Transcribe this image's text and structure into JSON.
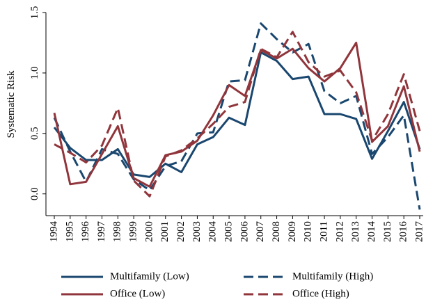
{
  "chart_data": {
    "type": "line",
    "y_label": "Systematic Risk",
    "categories": [
      "1994",
      "1995",
      "1996",
      "1997",
      "1998",
      "1999",
      "2000",
      "2001",
      "2002",
      "2003",
      "2004",
      "2005",
      "2006",
      "2007",
      "2008",
      "2009",
      "2010",
      "2011",
      "2012",
      "2013",
      "2014",
      "2015",
      "2016",
      "2017"
    ],
    "series": [
      {
        "name": "Multifamily (Low)",
        "color": "#1a476f",
        "linestyle": "solid",
        "values": [
          0.55,
          0.38,
          0.28,
          0.28,
          0.37,
          0.16,
          0.14,
          0.25,
          0.18,
          0.41,
          0.47,
          0.63,
          0.57,
          1.17,
          1.1,
          0.95,
          0.97,
          0.66,
          0.66,
          0.62,
          0.29,
          0.52,
          0.76,
          0.37
        ]
      },
      {
        "name": "Multifamily (High)",
        "color": "#1a476f",
        "linestyle": "dashed",
        "values": [
          0.63,
          0.35,
          0.1,
          0.37,
          0.33,
          0.12,
          0.03,
          0.23,
          0.27,
          0.5,
          0.51,
          0.93,
          0.94,
          1.41,
          1.28,
          1.17,
          1.24,
          0.85,
          0.75,
          0.81,
          0.33,
          0.47,
          0.65,
          -0.13
        ]
      },
      {
        "name": "Office (Low)",
        "color": "#90353b",
        "linestyle": "solid",
        "values": [
          0.67,
          0.08,
          0.1,
          0.33,
          0.56,
          0.13,
          0.06,
          0.32,
          0.35,
          0.44,
          0.65,
          0.9,
          0.81,
          1.19,
          1.12,
          1.2,
          1.04,
          0.93,
          1.04,
          1.25,
          0.43,
          0.56,
          0.89,
          0.35
        ]
      },
      {
        "name": "Office (High)",
        "color": "#90353b",
        "linestyle": "dashed",
        "values": [
          0.41,
          0.34,
          0.26,
          0.4,
          0.71,
          0.11,
          -0.02,
          0.31,
          0.36,
          0.46,
          0.58,
          0.72,
          0.76,
          1.2,
          1.13,
          1.34,
          1.09,
          0.97,
          1.02,
          0.84,
          0.44,
          0.66,
          0.99,
          0.52
        ]
      }
    ],
    "ylim": [
      -0.18,
      1.5
    ],
    "yticks": [
      {
        "value": 0,
        "label": "0.0"
      },
      0.5,
      {
        "value": 1,
        "label": "1.0"
      },
      1.5
    ],
    "legend": "bottom"
  }
}
